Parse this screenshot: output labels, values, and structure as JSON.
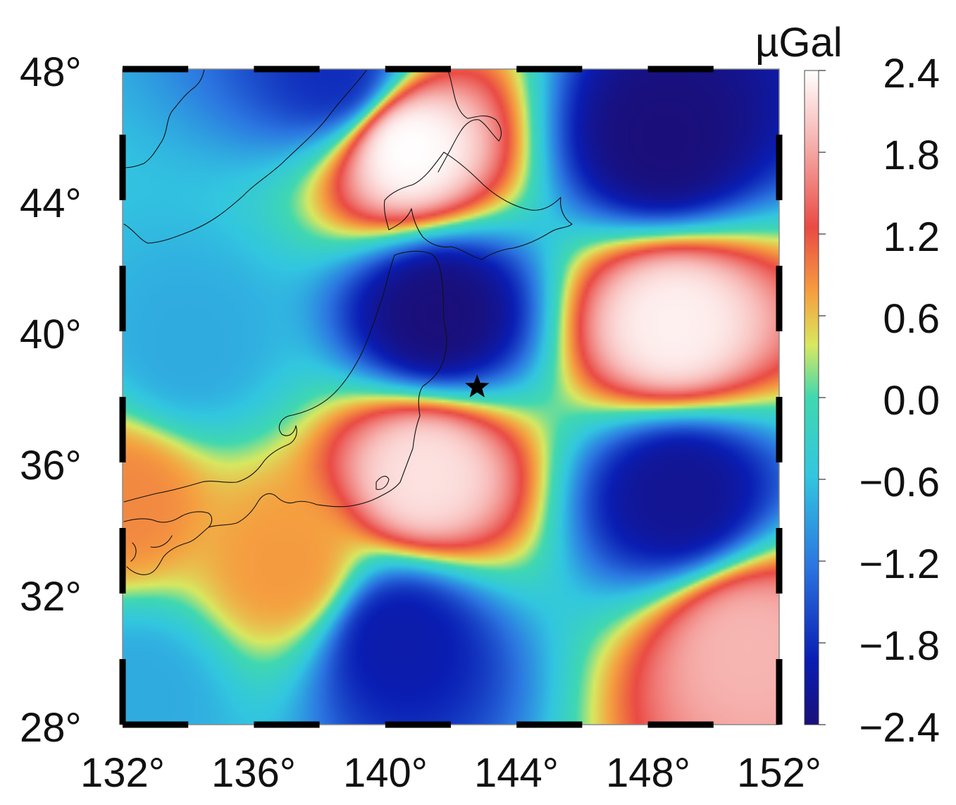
{
  "map": {
    "unit": "µGal",
    "lon_ticks": [
      "132°",
      "136°",
      "140°",
      "144°",
      "148°",
      "152°"
    ],
    "lat_ticks": [
      "48°",
      "44°",
      "40°",
      "36°",
      "32°",
      "28°"
    ],
    "lon_range": [
      132,
      152
    ],
    "lat_range": [
      28,
      48
    ],
    "epicenter": {
      "lon": 142.8,
      "lat": 38.3,
      "symbol": "star"
    },
    "colorbar": {
      "range": [
        -2.4,
        2.4
      ],
      "ticks": [
        "2.4",
        "1.8",
        "1.2",
        "0.6",
        "0.0",
        "−0.6",
        "−1.2",
        "−1.8",
        "−2.4"
      ],
      "colormap": "jet-white",
      "colors": [
        "#1a0f7a",
        "#0a1eb4",
        "#2b74e0",
        "#32c6e0",
        "#40d8b0",
        "#d8e860",
        "#f5a040",
        "#ea4a44",
        "#f7b9b6",
        "#ffffff"
      ]
    },
    "anomalies": [
      {
        "lon": 140.7,
        "lat": 45.6,
        "value": 2.4
      },
      {
        "lon": 148.8,
        "lat": 40.2,
        "value": 2.3
      },
      {
        "lon": 141.2,
        "lat": 35.6,
        "value": 2.2
      },
      {
        "lon": 151.0,
        "lat": 30.4,
        "value": 1.9
      },
      {
        "lon": 141.6,
        "lat": 40.5,
        "value": -2.4
      },
      {
        "lon": 148.5,
        "lat": 45.8,
        "value": -2.4
      },
      {
        "lon": 149.0,
        "lat": 35.0,
        "value": -2.2
      },
      {
        "lon": 140.4,
        "lat": 30.6,
        "value": -2.0
      },
      {
        "lon": 138.5,
        "lat": 47.8,
        "value": -1.8
      },
      {
        "lon": 134.0,
        "lat": 39.5,
        "value": -0.8
      },
      {
        "lon": 132.5,
        "lat": 29.0,
        "value": -0.8
      },
      {
        "lon": 132.0,
        "lat": 34.8,
        "value": 0.9
      },
      {
        "lon": 137.0,
        "lat": 32.8,
        "value": 0.8
      }
    ]
  }
}
